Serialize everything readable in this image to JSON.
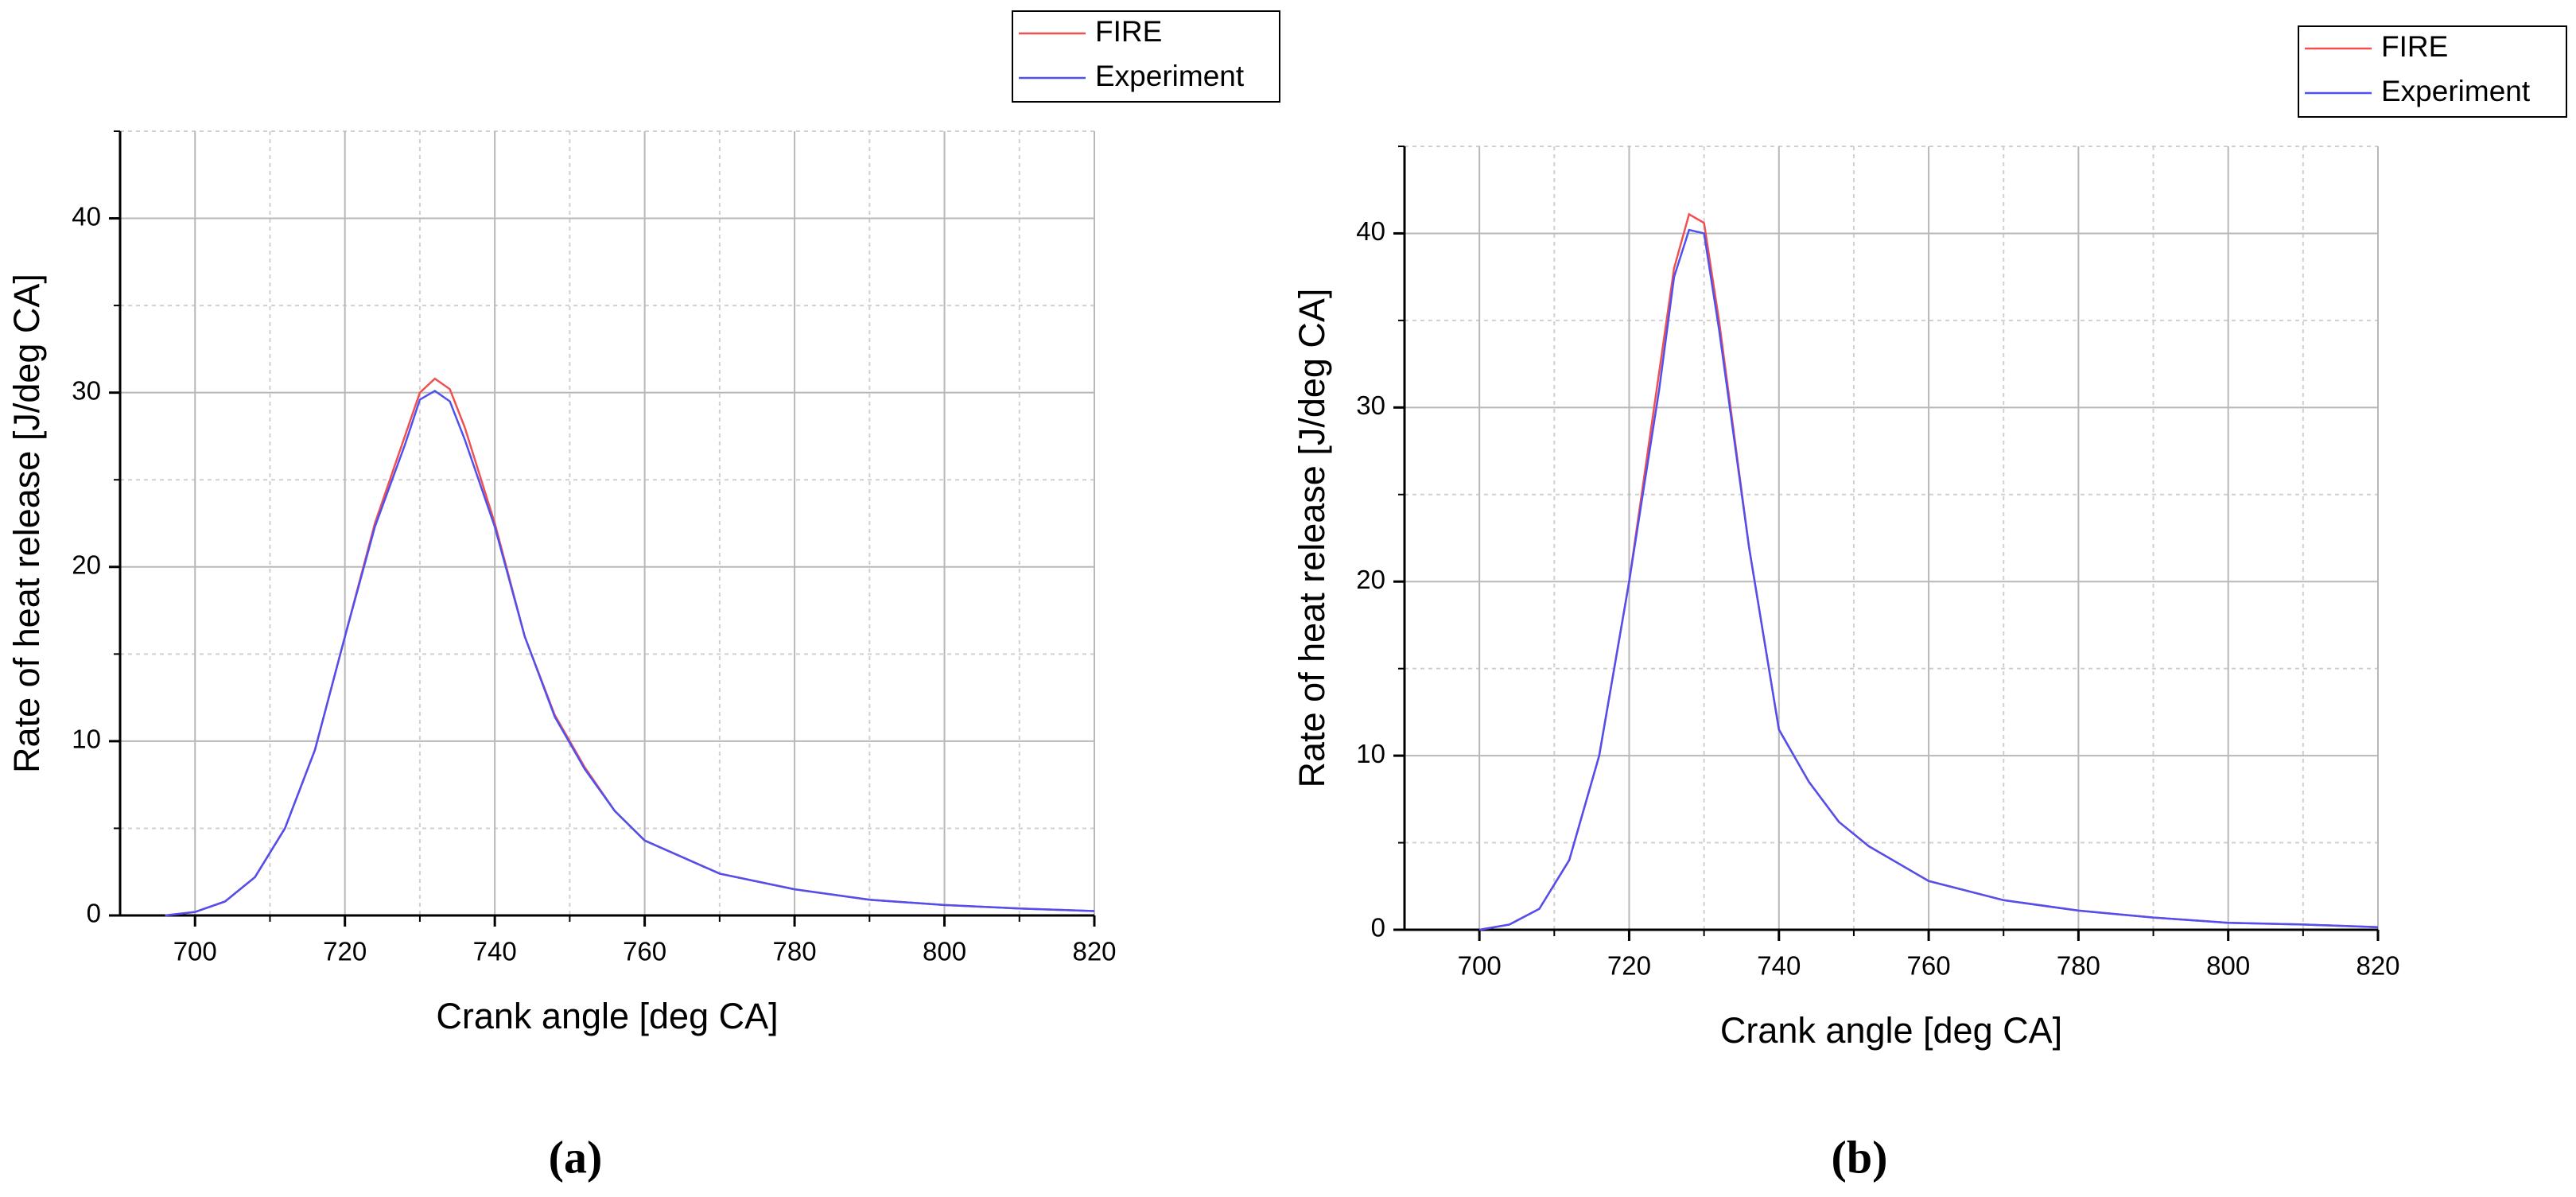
{
  "chart_data": [
    {
      "type": "line",
      "caption": "(a)",
      "xlabel": "Crank angle [deg CA]",
      "ylabel": "Rate of heat release [J/deg CA]",
      "x": [
        696,
        700,
        704,
        708,
        712,
        716,
        720,
        724,
        728,
        730,
        732,
        734,
        736,
        740,
        744,
        748,
        752,
        756,
        760,
        770,
        780,
        790,
        800,
        810,
        820
      ],
      "series": [
        {
          "name": "FIRE",
          "color": "#f05050",
          "values": [
            0,
            0.2,
            0.8,
            2.2,
            5,
            9.5,
            16,
            22.5,
            27.5,
            30,
            30.8,
            30.2,
            28,
            22.5,
            16,
            11.5,
            8.5,
            6,
            4.3,
            2.4,
            1.5,
            0.9,
            0.6,
            0.4,
            0.25
          ]
        },
        {
          "name": "Experiment",
          "color": "#5050f0",
          "values": [
            0,
            0.2,
            0.8,
            2.2,
            5,
            9.5,
            16,
            22.3,
            27,
            29.6,
            30.1,
            29.5,
            27.3,
            22.3,
            16,
            11.4,
            8.4,
            6,
            4.3,
            2.4,
            1.5,
            0.9,
            0.6,
            0.4,
            0.25
          ]
        }
      ],
      "xlim": [
        690,
        820
      ],
      "xticks": [
        700,
        720,
        740,
        760,
        780,
        800,
        820
      ],
      "xminor": [
        710,
        730,
        750,
        770,
        790,
        810
      ],
      "ylim": [
        0,
        45
      ],
      "yticks": [
        0,
        10,
        20,
        30,
        40
      ],
      "yminor": [
        5,
        15,
        25,
        35,
        45
      ],
      "grid": true,
      "legend": "upper right"
    },
    {
      "type": "line",
      "caption": "(b)",
      "xlabel": "Crank angle [deg CA]",
      "ylabel": "Rate of heat release [J/deg CA]",
      "x": [
        700,
        704,
        708,
        712,
        716,
        720,
        724,
        726,
        728,
        730,
        732,
        736,
        740,
        744,
        748,
        752,
        756,
        760,
        770,
        780,
        790,
        800,
        810,
        820
      ],
      "series": [
        {
          "name": "FIRE",
          "color": "#f05050",
          "values": [
            0,
            0.3,
            1.2,
            4,
            10,
            20,
            32,
            38,
            41.1,
            40.6,
            35,
            22,
            11.5,
            8.5,
            6.2,
            4.8,
            3.8,
            2.8,
            1.7,
            1.1,
            0.7,
            0.4,
            0.3,
            0.15
          ]
        },
        {
          "name": "Experiment",
          "color": "#5050f0",
          "values": [
            0,
            0.3,
            1.2,
            4,
            10,
            20,
            31,
            37.5,
            40.2,
            40,
            34.5,
            22,
            11.5,
            8.5,
            6.2,
            4.8,
            3.8,
            2.8,
            1.7,
            1.1,
            0.7,
            0.4,
            0.3,
            0.15
          ]
        }
      ],
      "xlim": [
        690,
        820
      ],
      "xticks": [
        700,
        720,
        740,
        760,
        780,
        800,
        820
      ],
      "xminor": [
        710,
        730,
        750,
        770,
        790,
        810
      ],
      "ylim": [
        0,
        45
      ],
      "yticks": [
        0,
        10,
        20,
        30,
        40
      ],
      "yminor": [
        5,
        15,
        25,
        35,
        45
      ],
      "grid": true,
      "legend": "upper right"
    }
  ]
}
